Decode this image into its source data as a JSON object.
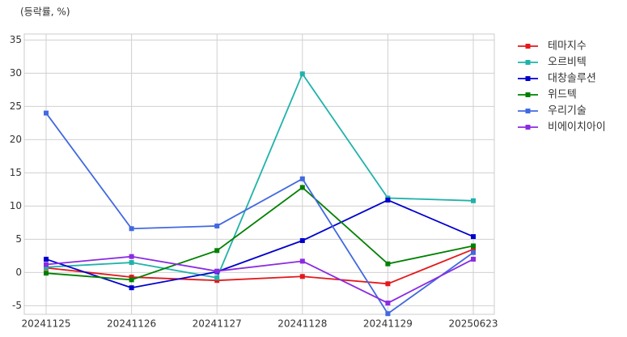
{
  "chart_data": {
    "type": "line",
    "unit_label": "(등락률, %)",
    "categories": [
      "20241125",
      "20241126",
      "20241127",
      "20241128",
      "20241129",
      "20250623"
    ],
    "series": [
      {
        "name": "테마지수",
        "color": "#e3191b",
        "values": [
          0.7,
          -0.7,
          -1.2,
          -0.6,
          -1.7,
          3.5
        ]
      },
      {
        "name": "오르비텍",
        "color": "#20b2aa",
        "values": [
          0.8,
          1.5,
          -0.8,
          29.9,
          11.2,
          10.8
        ]
      },
      {
        "name": "대창솔루션",
        "color": "#0000cd",
        "values": [
          2.0,
          -2.3,
          0.1,
          4.8,
          10.9,
          5.4
        ]
      },
      {
        "name": "위드텍",
        "color": "#008000",
        "values": [
          -0.1,
          -1.1,
          3.3,
          12.8,
          1.3,
          4.0
        ]
      },
      {
        "name": "우리기술",
        "color": "#4169e1",
        "values": [
          24.0,
          6.6,
          7.0,
          14.1,
          -6.2,
          3.0
        ]
      },
      {
        "name": "비에이치아이",
        "color": "#8a2be2",
        "values": [
          1.2,
          2.4,
          0.2,
          1.7,
          -4.6,
          2.0
        ]
      }
    ],
    "ylim": [
      -6.3,
      35.9
    ],
    "yticks": [
      -5,
      0,
      5,
      10,
      15,
      20,
      25,
      30,
      35
    ],
    "grid": true,
    "legend": "right"
  }
}
